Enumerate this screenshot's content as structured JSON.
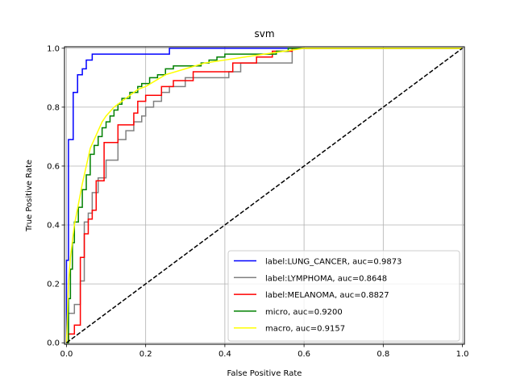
{
  "chart_data": {
    "type": "line",
    "title": "svm",
    "xlabel": "False Positive Rate",
    "ylabel": "True Positive Rate",
    "xlim": [
      -0.005,
      1.005
    ],
    "ylim": [
      -0.005,
      1.005
    ],
    "x_ticks": [
      0.0,
      0.2,
      0.4,
      0.6,
      0.8,
      1.0
    ],
    "x_tick_labels": [
      "0.0",
      "0.2",
      "0.4",
      "0.6",
      "0.8",
      "1.0"
    ],
    "y_ticks": [
      0.0,
      0.2,
      0.4,
      0.6,
      0.8,
      1.0
    ],
    "y_tick_labels": [
      "0.0",
      "0.2",
      "0.4",
      "0.6",
      "0.8",
      "1.0"
    ],
    "grid": true,
    "legend_position": "lower-right",
    "series": [
      {
        "name": "label:LUNG_CANCER, auc=0.9873",
        "color": "#0000ff",
        "step": true,
        "points": [
          [
            0,
            0
          ],
          [
            0,
            0.28
          ],
          [
            0.005,
            0.28
          ],
          [
            0.005,
            0.69
          ],
          [
            0.017,
            0.69
          ],
          [
            0.017,
            0.85
          ],
          [
            0.028,
            0.85
          ],
          [
            0.028,
            0.91
          ],
          [
            0.04,
            0.91
          ],
          [
            0.04,
            0.93
          ],
          [
            0.05,
            0.93
          ],
          [
            0.05,
            0.96
          ],
          [
            0.065,
            0.96
          ],
          [
            0.065,
            0.98
          ],
          [
            0.26,
            0.98
          ],
          [
            0.26,
            1.0
          ],
          [
            1.0,
            1.0
          ]
        ]
      },
      {
        "name": "label:LYMPHOMA, auc=0.8648",
        "color": "#808080",
        "step": true,
        "points": [
          [
            0,
            0
          ],
          [
            0.005,
            0
          ],
          [
            0.005,
            0.1
          ],
          [
            0.02,
            0.1
          ],
          [
            0.02,
            0.13
          ],
          [
            0.035,
            0.13
          ],
          [
            0.035,
            0.21
          ],
          [
            0.045,
            0.21
          ],
          [
            0.045,
            0.41
          ],
          [
            0.055,
            0.41
          ],
          [
            0.055,
            0.44
          ],
          [
            0.065,
            0.44
          ],
          [
            0.065,
            0.51
          ],
          [
            0.08,
            0.51
          ],
          [
            0.08,
            0.56
          ],
          [
            0.1,
            0.56
          ],
          [
            0.1,
            0.62
          ],
          [
            0.13,
            0.62
          ],
          [
            0.13,
            0.69
          ],
          [
            0.15,
            0.69
          ],
          [
            0.15,
            0.72
          ],
          [
            0.17,
            0.72
          ],
          [
            0.17,
            0.75
          ],
          [
            0.19,
            0.75
          ],
          [
            0.19,
            0.77
          ],
          [
            0.2,
            0.77
          ],
          [
            0.2,
            0.8
          ],
          [
            0.22,
            0.8
          ],
          [
            0.22,
            0.82
          ],
          [
            0.24,
            0.82
          ],
          [
            0.24,
            0.85
          ],
          [
            0.26,
            0.85
          ],
          [
            0.26,
            0.87
          ],
          [
            0.3,
            0.87
          ],
          [
            0.3,
            0.9
          ],
          [
            0.41,
            0.9
          ],
          [
            0.41,
            0.92
          ],
          [
            0.44,
            0.92
          ],
          [
            0.44,
            0.95
          ],
          [
            0.57,
            0.95
          ],
          [
            0.57,
            1.0
          ],
          [
            1.0,
            1.0
          ]
        ]
      },
      {
        "name": "label:MELANOMA, auc=0.8827",
        "color": "#ff0000",
        "step": true,
        "points": [
          [
            0,
            0
          ],
          [
            0.005,
            0
          ],
          [
            0.005,
            0.03
          ],
          [
            0.02,
            0.03
          ],
          [
            0.02,
            0.06
          ],
          [
            0.035,
            0.06
          ],
          [
            0.035,
            0.29
          ],
          [
            0.045,
            0.29
          ],
          [
            0.045,
            0.37
          ],
          [
            0.055,
            0.37
          ],
          [
            0.055,
            0.42
          ],
          [
            0.065,
            0.42
          ],
          [
            0.065,
            0.45
          ],
          [
            0.075,
            0.45
          ],
          [
            0.075,
            0.55
          ],
          [
            0.095,
            0.55
          ],
          [
            0.095,
            0.68
          ],
          [
            0.13,
            0.68
          ],
          [
            0.13,
            0.74
          ],
          [
            0.17,
            0.74
          ],
          [
            0.17,
            0.78
          ],
          [
            0.18,
            0.78
          ],
          [
            0.18,
            0.82
          ],
          [
            0.2,
            0.82
          ],
          [
            0.2,
            0.84
          ],
          [
            0.24,
            0.84
          ],
          [
            0.24,
            0.87
          ],
          [
            0.27,
            0.87
          ],
          [
            0.27,
            0.89
          ],
          [
            0.32,
            0.89
          ],
          [
            0.32,
            0.92
          ],
          [
            0.42,
            0.92
          ],
          [
            0.42,
            0.95
          ],
          [
            0.48,
            0.95
          ],
          [
            0.48,
            0.97
          ],
          [
            0.52,
            0.97
          ],
          [
            0.52,
            0.99
          ],
          [
            0.57,
            0.99
          ],
          [
            0.57,
            1.0
          ],
          [
            1.0,
            1.0
          ]
        ]
      },
      {
        "name": "micro, auc=0.9200",
        "color": "#008000",
        "step": true,
        "points": [
          [
            0,
            0
          ],
          [
            0.005,
            0
          ],
          [
            0.005,
            0.15
          ],
          [
            0.01,
            0.15
          ],
          [
            0.01,
            0.25
          ],
          [
            0.015,
            0.25
          ],
          [
            0.015,
            0.34
          ],
          [
            0.02,
            0.34
          ],
          [
            0.02,
            0.41
          ],
          [
            0.03,
            0.41
          ],
          [
            0.03,
            0.46
          ],
          [
            0.04,
            0.46
          ],
          [
            0.04,
            0.52
          ],
          [
            0.05,
            0.52
          ],
          [
            0.05,
            0.57
          ],
          [
            0.06,
            0.57
          ],
          [
            0.06,
            0.64
          ],
          [
            0.07,
            0.64
          ],
          [
            0.07,
            0.67
          ],
          [
            0.08,
            0.67
          ],
          [
            0.08,
            0.7
          ],
          [
            0.09,
            0.7
          ],
          [
            0.09,
            0.73
          ],
          [
            0.1,
            0.73
          ],
          [
            0.1,
            0.75
          ],
          [
            0.11,
            0.75
          ],
          [
            0.11,
            0.77
          ],
          [
            0.12,
            0.77
          ],
          [
            0.12,
            0.79
          ],
          [
            0.13,
            0.79
          ],
          [
            0.13,
            0.81
          ],
          [
            0.14,
            0.81
          ],
          [
            0.14,
            0.83
          ],
          [
            0.16,
            0.83
          ],
          [
            0.16,
            0.85
          ],
          [
            0.18,
            0.85
          ],
          [
            0.18,
            0.87
          ],
          [
            0.19,
            0.87
          ],
          [
            0.19,
            0.88
          ],
          [
            0.21,
            0.88
          ],
          [
            0.21,
            0.9
          ],
          [
            0.23,
            0.9
          ],
          [
            0.23,
            0.91
          ],
          [
            0.25,
            0.91
          ],
          [
            0.25,
            0.93
          ],
          [
            0.27,
            0.93
          ],
          [
            0.27,
            0.94
          ],
          [
            0.34,
            0.94
          ],
          [
            0.34,
            0.95
          ],
          [
            0.36,
            0.95
          ],
          [
            0.36,
            0.96
          ],
          [
            0.38,
            0.96
          ],
          [
            0.38,
            0.97
          ],
          [
            0.4,
            0.97
          ],
          [
            0.4,
            0.98
          ],
          [
            0.53,
            0.98
          ],
          [
            0.53,
            0.99
          ],
          [
            0.56,
            0.99
          ],
          [
            0.56,
            1.0
          ],
          [
            1.0,
            1.0
          ]
        ]
      },
      {
        "name": "macro, auc=0.9157",
        "color": "#ffff00",
        "step": false,
        "points": [
          [
            0,
            0
          ],
          [
            0.005,
            0.2
          ],
          [
            0.01,
            0.29
          ],
          [
            0.02,
            0.4
          ],
          [
            0.03,
            0.47
          ],
          [
            0.04,
            0.54
          ],
          [
            0.05,
            0.6
          ],
          [
            0.06,
            0.66
          ],
          [
            0.07,
            0.69
          ],
          [
            0.08,
            0.72
          ],
          [
            0.09,
            0.75
          ],
          [
            0.1,
            0.77
          ],
          [
            0.12,
            0.8
          ],
          [
            0.15,
            0.83
          ],
          [
            0.18,
            0.86
          ],
          [
            0.2,
            0.87
          ],
          [
            0.25,
            0.91
          ],
          [
            0.3,
            0.93
          ],
          [
            0.35,
            0.95
          ],
          [
            0.4,
            0.96
          ],
          [
            0.45,
            0.97
          ],
          [
            0.5,
            0.98
          ],
          [
            0.55,
            0.99
          ],
          [
            0.6,
            1.0
          ],
          [
            1.0,
            1.0
          ]
        ]
      },
      {
        "name": "",
        "color": "#000000",
        "dashed": true,
        "points": [
          [
            0,
            0
          ],
          [
            1,
            1
          ]
        ]
      }
    ]
  }
}
